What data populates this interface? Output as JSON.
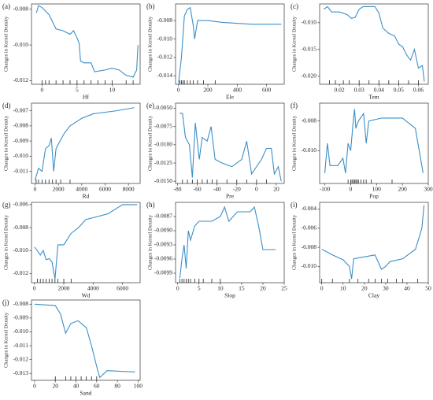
{
  "chart_data": [
    {
      "type": "line",
      "panel_label": "(a)",
      "xlabel": "Hf",
      "ylabel": "Changes in Kernel Density",
      "color": "#3a8fc9",
      "xlim": [
        -1.5,
        14
      ],
      "ylim": [
        -0.0122,
        -0.0077
      ],
      "xticks": [
        0,
        5,
        10
      ],
      "yticks": [
        -0.008,
        {
          "value": -0.01,
          "label": "-0.010"
        },
        -0.012
      ],
      "x": [
        -0.8,
        -0.5,
        0,
        1,
        2,
        3,
        4,
        4.5,
        5,
        5.3,
        5.5,
        6,
        7,
        7.5,
        9,
        10,
        11,
        12,
        13,
        13.5,
        13.7
      ],
      "values": [
        -0.0082,
        -0.0078,
        -0.0079,
        -0.0083,
        -0.0091,
        -0.0092,
        -0.0094,
        -0.0092,
        -0.0096,
        -0.0099,
        -0.0109,
        -0.011,
        -0.011,
        -0.0115,
        -0.0114,
        -0.0113,
        -0.0114,
        -0.0117,
        -0.0118,
        -0.0114,
        -0.01
      ],
      "rug": [
        0,
        0.5,
        1,
        2,
        3,
        4,
        5,
        6,
        7,
        8,
        9,
        10,
        12,
        13
      ]
    },
    {
      "type": "line",
      "panel_label": "(b)",
      "xlabel": "Ele",
      "ylabel": "Changes in Kernel Density",
      "color": "#3a8fc9",
      "xlim": [
        -20,
        720
      ],
      "ylim": [
        -0.0149,
        -0.0062
      ],
      "xticks": [
        0,
        200,
        400,
        600
      ],
      "yticks": [
        -0.014,
        -0.012,
        {
          "value": -0.01,
          "label": "-0.010"
        },
        -0.008
      ],
      "x": [
        0,
        20,
        40,
        60,
        80,
        100,
        110,
        130,
        200,
        300,
        500,
        700
      ],
      "values": [
        -0.0148,
        -0.012,
        -0.0075,
        -0.0068,
        -0.0066,
        -0.0085,
        -0.01,
        -0.008,
        -0.008,
        -0.0082,
        -0.0084,
        -0.0084
      ],
      "rug": [
        10,
        20,
        30,
        40,
        60,
        80,
        100,
        130,
        170,
        250
      ]
    },
    {
      "type": "line",
      "panel_label": "(c)",
      "xlabel": "Tem",
      "ylabel": "Changes in Kernel Density",
      "color": "#3a8fc9",
      "xlim": [
        0.01,
        0.065
      ],
      "ylim": [
        -0.0215,
        -0.0065
      ],
      "xticks": [
        0.02,
        0.03,
        0.04,
        0.05,
        0.06
      ],
      "yticks": [
        {
          "value": -0.01,
          "label": "-0.010"
        },
        -0.015,
        {
          "value": -0.02,
          "label": "-0.020"
        }
      ],
      "x": [
        0.012,
        0.014,
        0.016,
        0.02,
        0.024,
        0.026,
        0.028,
        0.03,
        0.032,
        0.038,
        0.04,
        0.042,
        0.045,
        0.048,
        0.05,
        0.052,
        0.054,
        0.056,
        0.058,
        0.06,
        0.062,
        0.063
      ],
      "values": [
        -0.0075,
        -0.007,
        -0.008,
        -0.008,
        -0.0085,
        -0.0092,
        -0.009,
        -0.0075,
        -0.007,
        -0.007,
        -0.0082,
        -0.011,
        -0.012,
        -0.0125,
        -0.014,
        -0.0145,
        -0.016,
        -0.017,
        -0.015,
        -0.0185,
        -0.018,
        -0.021
      ],
      "rug": [
        0.015,
        0.018,
        0.022,
        0.025,
        0.03,
        0.035,
        0.04,
        0.045,
        0.05,
        0.055,
        0.06
      ]
    },
    {
      "type": "line",
      "panel_label": "(d)",
      "xlabel": "Rd",
      "ylabel": "Changes in Kernel Density",
      "color": "#3a8fc9",
      "xlim": [
        -300,
        9000
      ],
      "ylim": [
        -0.0118,
        -0.0065
      ],
      "xticks": [
        0,
        2000,
        4000,
        6000,
        8000
      ],
      "yticks": [
        -0.011,
        {
          "value": -0.01,
          "label": "-0.010"
        },
        -0.009,
        -0.008,
        -0.007
      ],
      "x": [
        0,
        300,
        600,
        900,
        1200,
        1400,
        1600,
        1800,
        2000,
        2500,
        3000,
        4000,
        5000,
        7000,
        8500
      ],
      "values": [
        -0.0116,
        -0.0108,
        -0.011,
        -0.0095,
        -0.0093,
        -0.0088,
        -0.011,
        -0.0095,
        -0.0092,
        -0.0085,
        -0.008,
        -0.0075,
        -0.0072,
        -0.007,
        -0.0068
      ],
      "rug": [
        100,
        300,
        600,
        900,
        1200,
        1500,
        1800,
        2200,
        3000
      ]
    },
    {
      "type": "line",
      "panel_label": "(e)",
      "xlabel": "Pre",
      "ylabel": "Changes in Kernel Density",
      "color": "#3a8fc9",
      "xlim": [
        -82,
        28
      ],
      "ylim": [
        -0.0153,
        -0.0043
      ],
      "xticks": [
        -80,
        -60,
        -40,
        -20,
        0,
        20
      ],
      "yticks": [
        {
          "value": -0.005,
          "label": "-0.0050"
        },
        -0.0075,
        {
          "value": -0.01,
          "label": "-0.0100"
        },
        -0.0125,
        {
          "value": -0.015,
          "label": "-0.0150"
        }
      ],
      "x": [
        -78,
        -75,
        -72,
        -68,
        -65,
        -62,
        -58,
        -55,
        -50,
        -46,
        -42,
        -35,
        -25,
        -15,
        -10,
        -5,
        5,
        10,
        15,
        18,
        22,
        25
      ],
      "values": [
        -0.0057,
        -0.0057,
        -0.009,
        -0.01,
        -0.0145,
        -0.007,
        -0.012,
        -0.009,
        -0.0095,
        -0.0075,
        -0.012,
        -0.0125,
        -0.013,
        -0.012,
        -0.0095,
        -0.014,
        -0.012,
        -0.0105,
        -0.0105,
        -0.014,
        -0.013,
        -0.015
      ],
      "rug": [
        -75,
        -70,
        -65,
        -60,
        -55,
        -50,
        -45,
        -40,
        -30,
        -20,
        -10,
        0,
        10
      ]
    },
    {
      "type": "line",
      "panel_label": "(f)",
      "xlabel": "Pop",
      "ylabel": "Changes in Kernel Density",
      "color": "#3a8fc9",
      "xlim": [
        -120,
        300
      ],
      "ylim": [
        -0.0122,
        -0.0068
      ],
      "xticks": [
        -100,
        0,
        100,
        200,
        300
      ],
      "yticks": [
        -0.008,
        {
          "value": -0.01,
          "label": "-0.010"
        }
      ],
      "x": [
        -100,
        -90,
        -80,
        -50,
        -30,
        -20,
        -10,
        0,
        10,
        15,
        20,
        30,
        50,
        60,
        70,
        120,
        200,
        250,
        280
      ],
      "values": [
        -0.0115,
        -0.0095,
        -0.011,
        -0.011,
        -0.0105,
        -0.0115,
        -0.0095,
        -0.01,
        -0.008,
        -0.0072,
        -0.0085,
        -0.008,
        -0.0075,
        -0.0095,
        -0.008,
        -0.0078,
        -0.0078,
        -0.0085,
        -0.0115
      ],
      "rug": [
        -10,
        0,
        5,
        10,
        15,
        20,
        25,
        30,
        40,
        50,
        60,
        80,
        160
      ]
    },
    {
      "type": "line",
      "panel_label": "(g)",
      "xlabel": "Wd",
      "ylabel": "Changes in Kernel Density",
      "color": "#3a8fc9",
      "xlim": [
        -200,
        7200
      ],
      "ylim": [
        -0.0128,
        -0.0058
      ],
      "xticks": [
        0,
        2000,
        4000,
        6000
      ],
      "yticks": [
        -0.006,
        -0.008,
        {
          "value": -0.01,
          "label": "-0.010"
        },
        -0.012
      ],
      "x": [
        0,
        200,
        400,
        600,
        800,
        1000,
        1200,
        1400,
        1600,
        2000,
        2500,
        3000,
        3500,
        5000,
        6000,
        7000
      ],
      "values": [
        -0.0097,
        -0.01,
        -0.0104,
        -0.01,
        -0.0108,
        -0.0107,
        -0.011,
        -0.0125,
        -0.0095,
        -0.0095,
        -0.0085,
        -0.008,
        -0.0073,
        -0.0068,
        -0.006,
        -0.006
      ],
      "rug": [
        200,
        400,
        600,
        800,
        1000,
        1200,
        1400,
        1600,
        2000,
        2500
      ]
    },
    {
      "type": "line",
      "panel_label": "(h)",
      "xlabel": "Slop",
      "ylabel": "Changes in Kernel Density",
      "color": "#3a8fc9",
      "xlim": [
        -0.5,
        25
      ],
      "ylim": [
        -0.0101,
        -0.0084
      ],
      "xticks": [
        0,
        5,
        10,
        15,
        20,
        25
      ],
      "yticks": [
        -0.0087,
        {
          "value": -0.009,
          "label": "-0.0090"
        },
        -0.0093,
        -0.0096,
        -0.0099
      ],
      "x": [
        0.5,
        1,
        1.5,
        2,
        2.5,
        3,
        4,
        5,
        8,
        10,
        11,
        12,
        14,
        17,
        18,
        19,
        20,
        23
      ],
      "values": [
        -0.01,
        -0.0096,
        -0.0093,
        -0.0098,
        -0.009,
        -0.0092,
        -0.0089,
        -0.0088,
        -0.0088,
        -0.0087,
        -0.0085,
        -0.0088,
        -0.0086,
        -0.0086,
        -0.0085,
        -0.0089,
        -0.0094,
        -0.0094
      ],
      "rug": [
        0.5,
        1,
        1.5,
        2,
        2.5,
        3,
        4,
        5,
        6,
        8,
        10
      ]
    },
    {
      "type": "line",
      "panel_label": "(i)",
      "xlabel": "Clay",
      "ylabel": "Changes in Kernel Density",
      "color": "#3a8fc9",
      "xlim": [
        -1,
        50
      ],
      "ylim": [
        -0.0117,
        -0.0033
      ],
      "xticks": [
        0,
        10,
        20,
        30,
        40,
        50
      ],
      "yticks": [
        -0.004,
        -0.006,
        -0.008,
        {
          "value": -0.01,
          "label": "-0.010"
        }
      ],
      "x": [
        0,
        5,
        10,
        13,
        14,
        15,
        25,
        28,
        30,
        32,
        38,
        44,
        47,
        48
      ],
      "values": [
        -0.0082,
        -0.0088,
        -0.0093,
        -0.01,
        -0.0113,
        -0.0092,
        -0.0088,
        -0.0103,
        -0.01,
        -0.0095,
        -0.0092,
        -0.0082,
        -0.006,
        -0.0036
      ],
      "rug": [
        0,
        5,
        13,
        17,
        22,
        25,
        28,
        31,
        35,
        38,
        45
      ]
    },
    {
      "type": "line",
      "panel_label": "(j)",
      "xlabel": "Sand",
      "ylabel": "Changes in Kernel Density",
      "color": "#3a8fc9",
      "xlim": [
        -3,
        102
      ],
      "ylim": [
        -0.0135,
        -0.0077
      ],
      "xticks": [
        0,
        20,
        40,
        60,
        80,
        100
      ],
      "yticks": [
        -0.008,
        -0.009,
        {
          "value": -0.01,
          "label": "-0.010"
        },
        -0.011,
        -0.012,
        -0.013
      ],
      "x": [
        0,
        20,
        25,
        30,
        35,
        42,
        50,
        55,
        60,
        63,
        70,
        97
      ],
      "values": [
        -0.008,
        -0.0081,
        -0.0087,
        -0.0101,
        -0.0094,
        -0.0092,
        -0.0097,
        -0.011,
        -0.0125,
        -0.0133,
        -0.0128,
        -0.0129
      ],
      "rug": [
        20,
        30,
        35,
        40,
        45,
        50,
        55,
        60
      ]
    }
  ]
}
